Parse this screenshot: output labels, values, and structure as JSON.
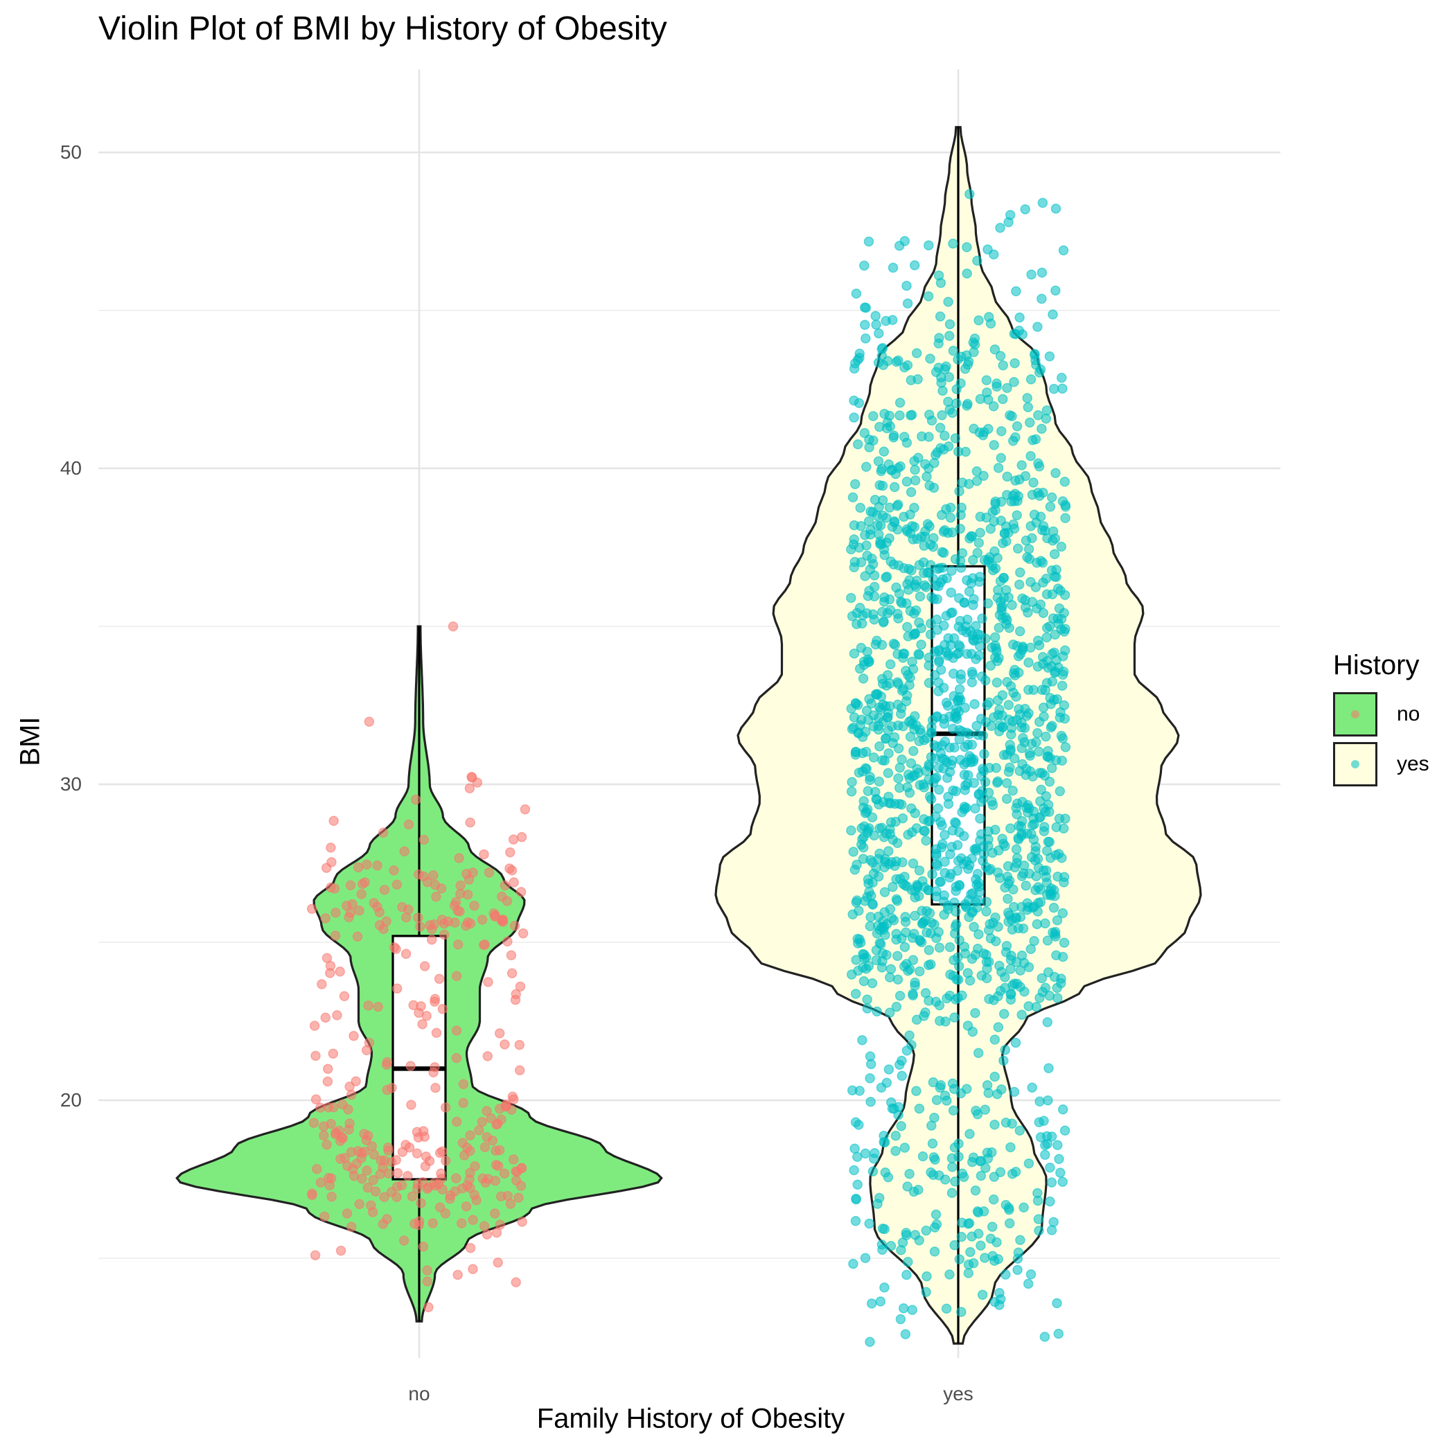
{
  "chart_data": {
    "type": "violin",
    "title": "Violin Plot of BMI by History of Obesity",
    "xlabel": "Family History of Obesity",
    "ylabel": "BMI",
    "ylim": [
      12,
      53
    ],
    "yticks": [
      "20",
      "30",
      "40",
      "50"
    ],
    "categories": [
      "no",
      "yes"
    ],
    "grid": true,
    "legend": {
      "title": "History",
      "placement": "right",
      "items": [
        {
          "label": "no",
          "fill": "#7FEB7F",
          "point": "#F8766D"
        },
        {
          "label": "yes",
          "fill": "#FFFFE0",
          "point": "#00BFC4"
        }
      ]
    },
    "series": [
      {
        "name": "no",
        "fill": "#7FEB7F",
        "point_color": "#F8766D",
        "n_points": 350,
        "box": {
          "q1": 17.5,
          "median": 21.0,
          "q3": 25.2,
          "whisker_low": 13.0,
          "whisker_high": 35.0
        },
        "range": [
          13.0,
          35.0
        ],
        "density_bmi": [
          13.0,
          14.5,
          15.5,
          16.5,
          17.5,
          18.5,
          19.5,
          20.5,
          21.5,
          22.5,
          23.5,
          24.5,
          25.5,
          26.3,
          27.0,
          28.0,
          29.0,
          30.0,
          32.0,
          35.0
        ],
        "density": [
          0.01,
          0.06,
          0.18,
          0.42,
          0.92,
          0.7,
          0.42,
          0.2,
          0.18,
          0.23,
          0.23,
          0.26,
          0.37,
          0.4,
          0.32,
          0.19,
          0.09,
          0.04,
          0.015,
          0.005
        ]
      },
      {
        "name": "yes",
        "fill": "#FFFFE0",
        "point_color": "#00BFC4",
        "n_points": 1700,
        "box": {
          "q1": 26.2,
          "median": 31.6,
          "q3": 36.9,
          "whisker_low": 12.3,
          "whisker_high": 50.8
        },
        "range": [
          12.3,
          50.8
        ],
        "density_bmi": [
          12.3,
          14.0,
          16.0,
          17.5,
          18.5,
          20.0,
          21.5,
          22.5,
          23.5,
          24.5,
          25.5,
          26.5,
          27.5,
          28.5,
          29.5,
          30.5,
          31.5,
          32.5,
          33.5,
          34.5,
          35.5,
          36.5,
          37.5,
          38.5,
          39.5,
          40.5,
          41.5,
          42.5,
          43.5,
          44.5,
          45.5,
          46.5,
          47.5,
          48.5,
          49.5,
          50.8
        ],
        "density": [
          0.01,
          0.08,
          0.19,
          0.2,
          0.17,
          0.12,
          0.1,
          0.15,
          0.28,
          0.46,
          0.52,
          0.55,
          0.54,
          0.47,
          0.45,
          0.46,
          0.5,
          0.46,
          0.4,
          0.4,
          0.42,
          0.38,
          0.35,
          0.32,
          0.3,
          0.26,
          0.22,
          0.2,
          0.18,
          0.12,
          0.08,
          0.05,
          0.04,
          0.03,
          0.02,
          0.005
        ]
      }
    ]
  }
}
